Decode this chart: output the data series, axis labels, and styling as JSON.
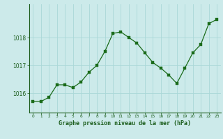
{
  "x": [
    0,
    1,
    2,
    3,
    4,
    5,
    6,
    7,
    8,
    9,
    10,
    11,
    12,
    13,
    14,
    15,
    16,
    17,
    18,
    19,
    20,
    21,
    22,
    23
  ],
  "y": [
    1015.7,
    1015.7,
    1015.85,
    1016.3,
    1016.3,
    1016.2,
    1016.4,
    1016.75,
    1017.0,
    1017.5,
    1018.15,
    1018.2,
    1018.0,
    1017.8,
    1017.45,
    1017.1,
    1016.9,
    1016.65,
    1016.35,
    1016.9,
    1017.45,
    1017.75,
    1018.5,
    1018.65
  ],
  "line_color": "#1a6b1a",
  "marker_color": "#1a6b1a",
  "bg_color": "#cceaea",
  "grid_color": "#aad8d8",
  "axis_label_color": "#1a5c1a",
  "xlabel": "Graphe pression niveau de la mer (hPa)",
  "yticks": [
    1016,
    1017,
    1018
  ],
  "ylim": [
    1015.3,
    1019.2
  ],
  "xlim": [
    -0.5,
    23.5
  ],
  "xtick_labels": [
    "0",
    "1",
    "2",
    "3",
    "4",
    "5",
    "6",
    "7",
    "8",
    "9",
    "10",
    "11",
    "12",
    "13",
    "14",
    "15",
    "16",
    "17",
    "18",
    "19",
    "20",
    "21",
    "22",
    "23"
  ]
}
